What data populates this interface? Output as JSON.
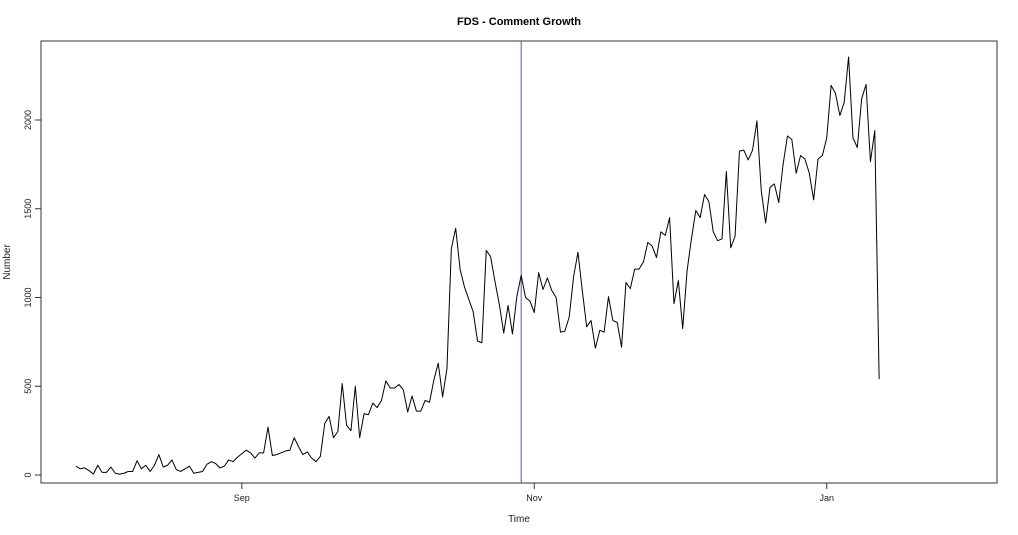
{
  "chart_data": {
    "type": "line",
    "title": "FDS - Comment Growth",
    "xlabel": "Time",
    "ylabel": "Number",
    "x_start_day": 0,
    "x_range": [
      -8,
      211
    ],
    "ylim": [
      -45,
      2445
    ],
    "x_ticks": [
      {
        "label": "Sep",
        "day": 38
      },
      {
        "label": "Nov",
        "day": 105
      },
      {
        "label": "Jan",
        "day": 172
      }
    ],
    "y_ticks": [
      0,
      500,
      1000,
      1500,
      2000
    ],
    "vline": {
      "day": 102,
      "color": "#5555aa"
    },
    "series": [
      {
        "color": "#000000",
        "values": [
          50,
          35,
          40,
          25,
          5,
          55,
          15,
          15,
          45,
          10,
          5,
          10,
          20,
          20,
          80,
          35,
          55,
          20,
          55,
          115,
          45,
          55,
          85,
          30,
          20,
          35,
          50,
          10,
          15,
          20,
          60,
          75,
          65,
          40,
          50,
          85,
          75,
          100,
          120,
          140,
          125,
          95,
          125,
          125,
          270,
          110,
          115,
          125,
          135,
          140,
          210,
          160,
          115,
          130,
          95,
          75,
          105,
          290,
          330,
          210,
          245,
          515,
          280,
          250,
          500,
          210,
          345,
          340,
          405,
          380,
          420,
          530,
          490,
          490,
          510,
          480,
          355,
          445,
          360,
          360,
          420,
          410,
          535,
          630,
          440,
          600,
          1275,
          1390,
          1160,
          1060,
          990,
          920,
          755,
          745,
          1265,
          1230,
          1090,
          960,
          800,
          955,
          795,
          1005,
          1125,
          1000,
          980,
          915,
          1140,
          1045,
          1110,
          1040,
          1000,
          805,
          810,
          890,
          1115,
          1255,
          1040,
          835,
          870,
          715,
          815,
          805,
          1005,
          870,
          860,
          720,
          1085,
          1050,
          1160,
          1160,
          1200,
          1310,
          1290,
          1225,
          1370,
          1350,
          1450,
          965,
          1095,
          825,
          1150,
          1330,
          1490,
          1450,
          1580,
          1540,
          1370,
          1320,
          1330,
          1710,
          1280,
          1345,
          1825,
          1830,
          1775,
          1830,
          1995,
          1600,
          1420,
          1620,
          1640,
          1535,
          1750,
          1910,
          1890,
          1700,
          1800,
          1780,
          1700,
          1550,
          1780,
          1800,
          1900,
          2195,
          2150,
          2025,
          2100,
          2355,
          1900,
          1845,
          2120,
          2200,
          1765,
          1940,
          540
        ]
      }
    ]
  }
}
